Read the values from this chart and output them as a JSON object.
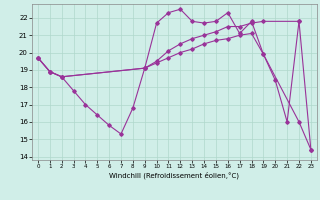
{
  "xlabel": "Windchill (Refroidissement éolien,°C)",
  "background_color": "#d0eee8",
  "grid_color": "#b0d8cc",
  "line_color": "#993399",
  "xlim": [
    -0.5,
    23.5
  ],
  "ylim": [
    13.8,
    22.8
  ],
  "yticks": [
    14,
    15,
    16,
    17,
    18,
    19,
    20,
    21,
    22
  ],
  "xticks": [
    0,
    1,
    2,
    3,
    4,
    5,
    6,
    7,
    8,
    9,
    10,
    11,
    12,
    13,
    14,
    15,
    16,
    17,
    18,
    19,
    20,
    21,
    22,
    23
  ],
  "line1_x": [
    0,
    1,
    2,
    3,
    4,
    5,
    6,
    7,
    8,
    9,
    10,
    11,
    12,
    13,
    14,
    15,
    16,
    17,
    18,
    19,
    20,
    21,
    22
  ],
  "line1_y": [
    19.7,
    18.9,
    18.6,
    17.8,
    17.0,
    16.4,
    15.8,
    15.3,
    16.8,
    19.1,
    21.7,
    22.3,
    22.5,
    21.8,
    21.7,
    21.8,
    22.3,
    21.1,
    21.8,
    19.9,
    18.4,
    16.0,
    21.8
  ],
  "line2_x": [
    0,
    1,
    2,
    9,
    10,
    11,
    12,
    13,
    14,
    15,
    16,
    17,
    18,
    19,
    22,
    23
  ],
  "line2_y": [
    19.7,
    18.9,
    18.6,
    19.1,
    19.5,
    20.1,
    20.5,
    20.8,
    21.0,
    21.2,
    21.5,
    21.5,
    21.7,
    21.8,
    21.8,
    14.4
  ],
  "line3_x": [
    0,
    1,
    2,
    9,
    10,
    11,
    12,
    13,
    14,
    15,
    16,
    17,
    18,
    19,
    22,
    23
  ],
  "line3_y": [
    19.7,
    18.9,
    18.6,
    19.1,
    19.4,
    19.7,
    20.0,
    20.2,
    20.5,
    20.7,
    20.8,
    21.0,
    21.1,
    19.9,
    16.0,
    14.4
  ]
}
